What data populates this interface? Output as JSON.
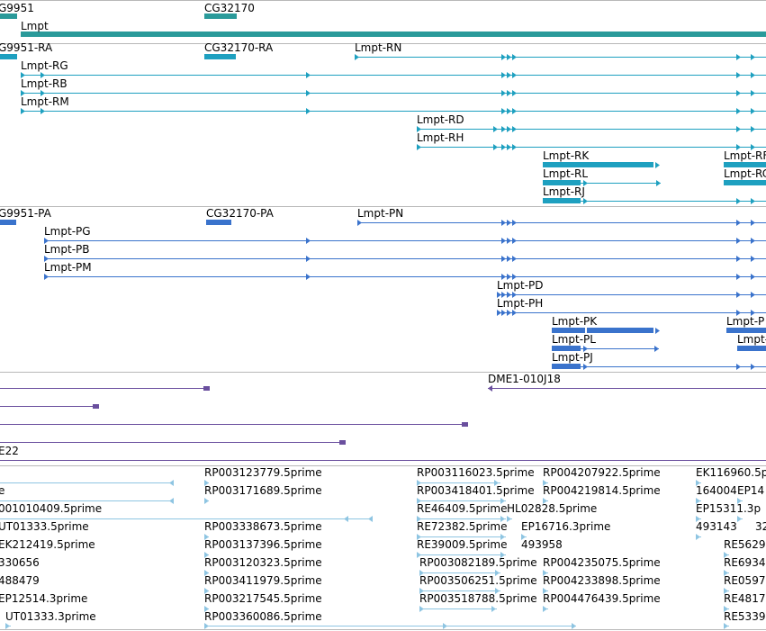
{
  "colors": {
    "gene": "#2a9a9a",
    "transcript": "#1ea0c0",
    "protein": "#3a73cc",
    "clone": "#6a4f9e",
    "est": "#8ec5e2",
    "separator": "#b8b8b8"
  },
  "gene_track": {
    "labels": [
      "G9951",
      "CG32170",
      "Lmpt"
    ]
  },
  "transcript_track": {
    "labels": [
      "G9951-RA",
      "CG32170-RA",
      "Lmpt-RN",
      "Lmpt-RG",
      "Lmpt-RB",
      "Lmpt-RM",
      "Lmpt-RD",
      "Lmpt-RH",
      "Lmpt-RK",
      "Lmpt-RF",
      "Lmpt-RL",
      "Lmpt-RC",
      "Lmpt-RJ"
    ]
  },
  "protein_track": {
    "labels": [
      "G9951-PA",
      "CG32170-PA",
      "Lmpt-PN",
      "Lmpt-PG",
      "Lmpt-PB",
      "Lmpt-PM",
      "Lmpt-PD",
      "Lmpt-PH",
      "Lmpt-PK",
      "Lmpt-P",
      "Lmpt-PL",
      "Lmpt-",
      "Lmpt-PJ"
    ]
  },
  "clone_track": {
    "labels": [
      "DME1-010J18",
      "E22"
    ]
  },
  "est_track": {
    "labels": [
      "RP003123779.5prime",
      "RP003116023.5prime",
      "RP004207922.5prime",
      "EK116960.5p",
      "e",
      "RP003171689.5prime",
      "RP003418401.5prime",
      "RP004219814.5prime",
      "164004",
      "EP14",
      "001010409.5prime",
      "RE46409.5prime",
      "HL02828.5prime",
      "EP15311.3p",
      "UT01333.5prime",
      "RP003338673.5prime",
      "RE72382.5prime",
      "EP16716.3prime",
      "493143",
      "32",
      "EK212419.5prime",
      "RP003137396.5prime",
      "RE39009.5prime",
      "493958",
      "RE5629",
      "330656",
      "RP003120323.5prime",
      "RP003082189.5prime",
      "RP004235075.5prime",
      "RE6934",
      "488479",
      "RP003411979.5prime",
      "RP003506251.5prime",
      "RP004233898.5prime",
      "RE0597",
      "EP12514.3prime",
      "RP003217545.5prime",
      "RP003518788.5prime",
      "RP004476439.5prime",
      "RE4817",
      "UT01333.3prime",
      "RP003360086.5prime",
      "RE5339"
    ]
  }
}
